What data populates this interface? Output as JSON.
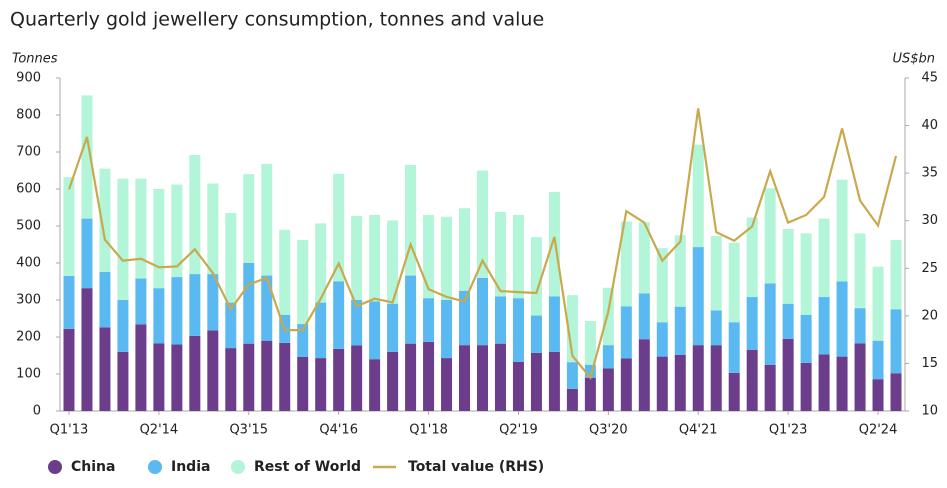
{
  "chart_data": {
    "type": "bar",
    "stacked": true,
    "title": "Quarterly gold jewellery consumption, tonnes and value",
    "y_label": "Tonnes",
    "y2_label": "US$bn",
    "categories": [
      "Q1'13",
      null,
      null,
      null,
      null,
      "Q2'14",
      null,
      null,
      null,
      null,
      "Q3'15",
      null,
      null,
      null,
      null,
      "Q4'16",
      null,
      null,
      null,
      null,
      "Q1'18",
      null,
      null,
      null,
      null,
      "Q2'19",
      null,
      null,
      null,
      null,
      "Q3'20",
      null,
      null,
      null,
      null,
      "Q4'21",
      null,
      null,
      null,
      null,
      "Q1'23",
      null,
      null,
      null,
      null,
      "Q2'24",
      null
    ],
    "series": [
      {
        "name": "China",
        "type": "bar",
        "axis": "y",
        "color": "#6b3d8a",
        "values": [
          222,
          332,
          226,
          160,
          234,
          183,
          180,
          203,
          218,
          170,
          182,
          190,
          184,
          146,
          143,
          168,
          177,
          140,
          160,
          182,
          187,
          143,
          178,
          178,
          182,
          133,
          157,
          160,
          60,
          90,
          115,
          142,
          194,
          147,
          152,
          178,
          178,
          103,
          165,
          125,
          195,
          130,
          153,
          147,
          183,
          86,
          102
        ]
      },
      {
        "name": "India",
        "type": "bar",
        "axis": "y",
        "color": "#5ab9f0",
        "values": [
          143,
          188,
          150,
          140,
          124,
          149,
          182,
          167,
          152,
          123,
          218,
          176,
          76,
          89,
          150,
          182,
          123,
          156,
          130,
          184,
          118,
          157,
          147,
          182,
          128,
          172,
          101,
          150,
          72,
          35,
          63,
          141,
          124,
          93,
          130,
          265,
          94,
          137,
          143,
          220,
          95,
          130,
          155,
          203,
          95,
          104,
          173
        ]
      },
      {
        "name": "Rest of World",
        "type": "bar",
        "axis": "y",
        "color": "#b2f5d8",
        "values": [
          267,
          333,
          279,
          328,
          270,
          268,
          250,
          322,
          245,
          242,
          240,
          302,
          230,
          227,
          214,
          291,
          227,
          234,
          225,
          299,
          225,
          225,
          223,
          290,
          228,
          225,
          212,
          282,
          181,
          118,
          155,
          229,
          192,
          200,
          193,
          277,
          201,
          215,
          215,
          257,
          202,
          220,
          212,
          275,
          202,
          200,
          187
        ]
      },
      {
        "name": "Total value (RHS)",
        "type": "line",
        "axis": "y2",
        "color": "#c9a94e",
        "values": [
          33.3,
          38.8,
          28.0,
          25.8,
          26.0,
          25.1,
          25.2,
          27.0,
          24.5,
          20.7,
          23.3,
          24.0,
          18.5,
          18.5,
          21.8,
          25.5,
          21.0,
          21.8,
          21.4,
          27.5,
          22.8,
          22.0,
          21.5,
          25.8,
          22.6,
          22.5,
          22.4,
          28.3,
          15.8,
          13.5,
          20.5,
          31.0,
          29.8,
          25.8,
          27.8,
          41.8,
          28.8,
          27.9,
          29.4,
          35.2,
          29.8,
          30.6,
          32.5,
          39.7,
          32.1,
          29.5,
          36.8
        ]
      }
    ],
    "ylim": [
      0,
      900
    ],
    "yticks": [
      0,
      100,
      200,
      300,
      400,
      500,
      600,
      700,
      800,
      900
    ],
    "y2lim": [
      10,
      45
    ],
    "y2ticks": [
      10,
      15,
      20,
      25,
      30,
      35,
      40,
      45
    ],
    "grid": false,
    "legend": "bottom"
  }
}
